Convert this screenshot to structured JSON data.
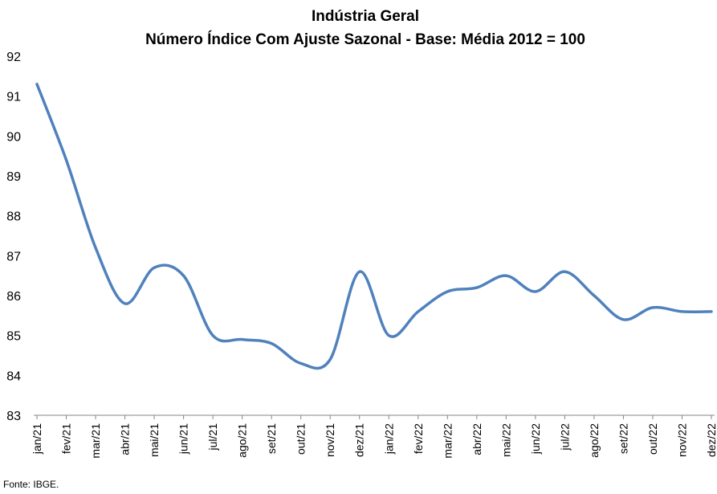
{
  "chart_data": {
    "type": "line",
    "title": "Indústria Geral",
    "subtitle": "Número Índice Com Ajuste Sazonal - Base: Média 2012 = 100",
    "categories": [
      "jan/21",
      "fev/21",
      "mar/21",
      "abr/21",
      "mai/21",
      "jun/21",
      "jul/21",
      "ago/21",
      "set/21",
      "out/21",
      "nov/21",
      "dez/21",
      "jan/22",
      "fev/22",
      "mar/22",
      "abr/22",
      "mai/22",
      "jun/22",
      "jul/22",
      "ago/22",
      "set/22",
      "out/22",
      "nov/22",
      "dez/22"
    ],
    "series": [
      {
        "values": [
          91.3,
          89.4,
          87.2,
          85.8,
          86.7,
          86.5,
          85.0,
          84.9,
          84.8,
          84.3,
          84.4,
          86.6,
          85.0,
          85.6,
          86.1,
          86.2,
          86.5,
          86.1,
          86.6,
          86.0,
          85.4,
          85.7,
          85.6,
          85.6
        ]
      }
    ],
    "ylim": [
      83,
      92
    ],
    "yticks": [
      "83",
      "84",
      "85",
      "86",
      "87",
      "88",
      "89",
      "90",
      "91",
      "92"
    ],
    "grid": false,
    "line_color": "#4f81bd",
    "source": "Fonte: IBGE."
  }
}
